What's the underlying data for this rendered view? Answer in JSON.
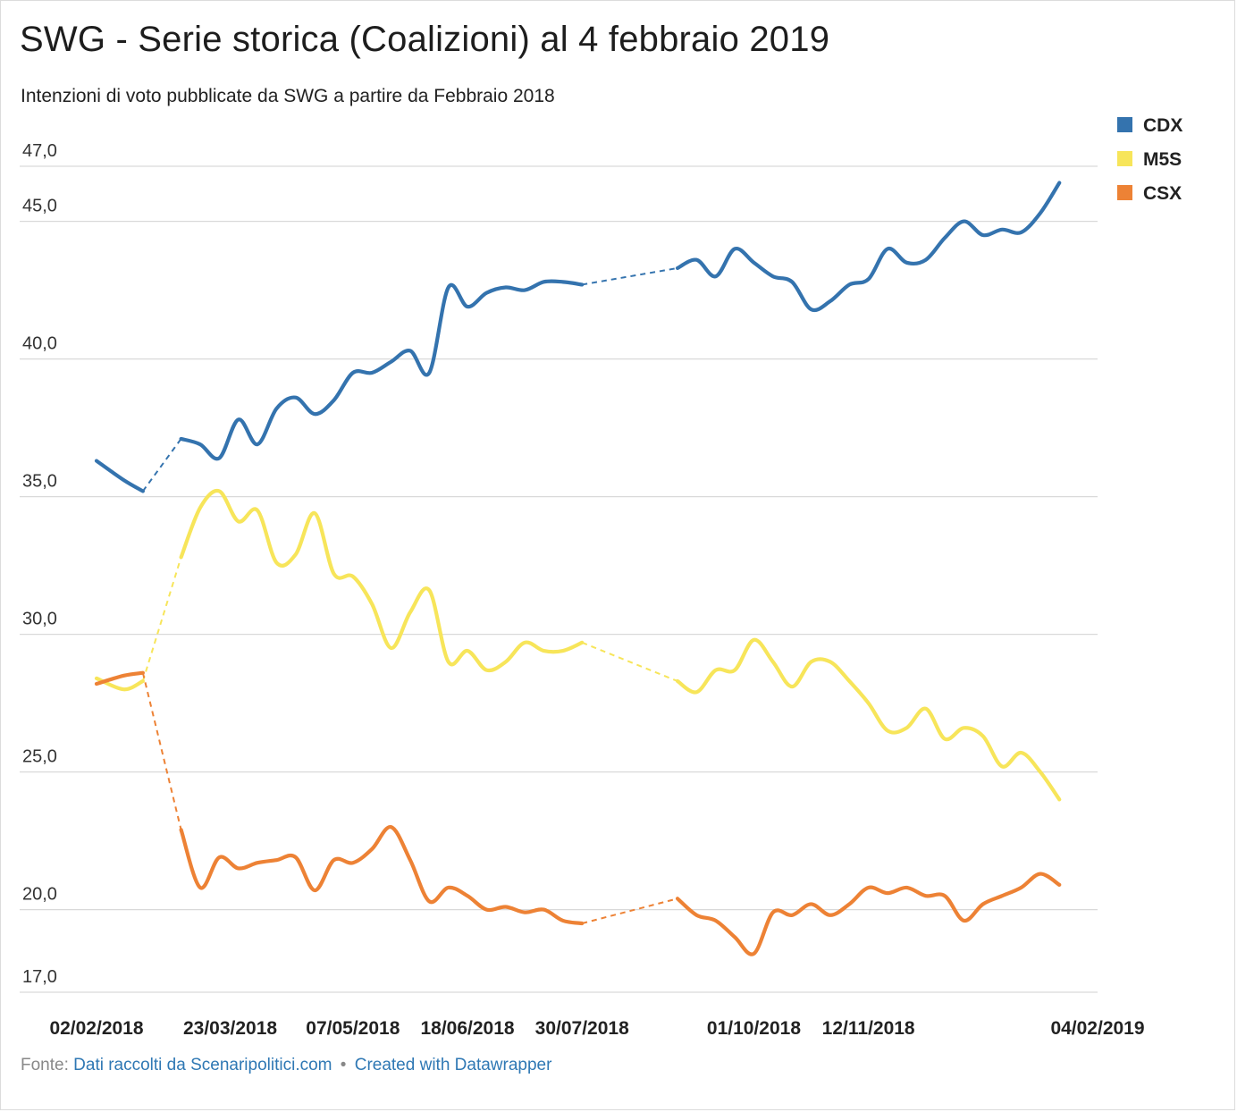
{
  "title": "SWG - Serie storica (Coalizioni) al 4 febbraio 2019",
  "subtitle": "Intenzioni di voto pubblicate da SWG a partire da Febbraio 2018",
  "footer": {
    "source_prefix": "Fonte:",
    "source_link": "Dati raccolti da Scenaripolitici.com",
    "separator": "•",
    "credit_link": "Created with Datawrapper"
  },
  "chart_data": {
    "type": "line",
    "x_start": "02/02/2018",
    "x_end": "04/02/2019",
    "ylim": [
      17.0,
      47.0
    ],
    "yticks": [
      "47,0",
      "45,0",
      "40,0",
      "35,0",
      "30,0",
      "25,0",
      "20,0",
      "17,0"
    ],
    "ytick_values": [
      47,
      45,
      40,
      35,
      30,
      25,
      20,
      17
    ],
    "xticks": [
      "02/02/2018",
      "23/03/2018",
      "07/05/2018",
      "18/06/2018",
      "30/07/2018",
      "01/10/2018",
      "12/11/2018",
      "04/02/2019"
    ],
    "xtick_dates": [
      "2018-02-02",
      "2018-03-23",
      "2018-05-07",
      "2018-06-18",
      "2018-07-30",
      "2018-10-01",
      "2018-11-12",
      "2019-02-04"
    ],
    "legend": "top-right",
    "grid": true,
    "gaps": [
      [
        "2018-02-19",
        "2018-03-05"
      ],
      [
        "2018-07-30",
        "2018-09-03"
      ]
    ],
    "series": [
      {
        "name": "CDX",
        "color": "#3473ae",
        "points": [
          [
            "2018-02-02",
            36.3
          ],
          [
            "2018-02-12",
            35.6
          ],
          [
            "2018-02-19",
            35.2
          ],
          [
            "2018-03-05",
            37.1
          ],
          [
            "2018-03-12",
            36.9
          ],
          [
            "2018-03-19",
            36.4
          ],
          [
            "2018-03-26",
            37.8
          ],
          [
            "2018-04-02",
            36.9
          ],
          [
            "2018-04-09",
            38.2
          ],
          [
            "2018-04-16",
            38.6
          ],
          [
            "2018-04-23",
            38.0
          ],
          [
            "2018-04-30",
            38.5
          ],
          [
            "2018-05-07",
            39.5
          ],
          [
            "2018-05-14",
            39.5
          ],
          [
            "2018-05-21",
            39.9
          ],
          [
            "2018-05-28",
            40.3
          ],
          [
            "2018-06-04",
            39.5
          ],
          [
            "2018-06-11",
            42.6
          ],
          [
            "2018-06-18",
            41.9
          ],
          [
            "2018-06-25",
            42.4
          ],
          [
            "2018-07-02",
            42.6
          ],
          [
            "2018-07-09",
            42.5
          ],
          [
            "2018-07-16",
            42.8
          ],
          [
            "2018-07-23",
            42.8
          ],
          [
            "2018-07-30",
            42.7
          ],
          [
            "2018-09-03",
            43.3
          ],
          [
            "2018-09-10",
            43.6
          ],
          [
            "2018-09-17",
            43.0
          ],
          [
            "2018-09-24",
            44.0
          ],
          [
            "2018-10-01",
            43.5
          ],
          [
            "2018-10-08",
            43.0
          ],
          [
            "2018-10-15",
            42.8
          ],
          [
            "2018-10-22",
            41.8
          ],
          [
            "2018-10-29",
            42.1
          ],
          [
            "2018-11-05",
            42.7
          ],
          [
            "2018-11-12",
            42.9
          ],
          [
            "2018-11-19",
            44.0
          ],
          [
            "2018-11-26",
            43.5
          ],
          [
            "2018-12-03",
            43.6
          ],
          [
            "2018-12-10",
            44.4
          ],
          [
            "2018-12-17",
            45.0
          ],
          [
            "2018-12-24",
            44.5
          ],
          [
            "2018-12-31",
            44.7
          ],
          [
            "2019-01-07",
            44.6
          ],
          [
            "2019-01-14",
            45.3
          ],
          [
            "2019-01-21",
            46.4
          ]
        ]
      },
      {
        "name": "M5S",
        "color": "#f7e55a",
        "points": [
          [
            "2018-02-02",
            28.4
          ],
          [
            "2018-02-12",
            28.0
          ],
          [
            "2018-02-19",
            28.3
          ],
          [
            "2018-03-05",
            32.8
          ],
          [
            "2018-03-12",
            34.6
          ],
          [
            "2018-03-19",
            35.2
          ],
          [
            "2018-03-26",
            34.1
          ],
          [
            "2018-04-02",
            34.5
          ],
          [
            "2018-04-09",
            32.6
          ],
          [
            "2018-04-16",
            32.9
          ],
          [
            "2018-04-23",
            34.4
          ],
          [
            "2018-04-30",
            32.2
          ],
          [
            "2018-05-07",
            32.1
          ],
          [
            "2018-05-14",
            31.1
          ],
          [
            "2018-05-21",
            29.5
          ],
          [
            "2018-05-28",
            30.8
          ],
          [
            "2018-06-04",
            31.6
          ],
          [
            "2018-06-11",
            29.0
          ],
          [
            "2018-06-18",
            29.4
          ],
          [
            "2018-06-25",
            28.7
          ],
          [
            "2018-07-02",
            29.0
          ],
          [
            "2018-07-09",
            29.7
          ],
          [
            "2018-07-16",
            29.4
          ],
          [
            "2018-07-23",
            29.4
          ],
          [
            "2018-07-30",
            29.7
          ],
          [
            "2018-09-03",
            28.3
          ],
          [
            "2018-09-10",
            27.9
          ],
          [
            "2018-09-17",
            28.7
          ],
          [
            "2018-09-24",
            28.7
          ],
          [
            "2018-10-01",
            29.8
          ],
          [
            "2018-10-08",
            29.0
          ],
          [
            "2018-10-15",
            28.1
          ],
          [
            "2018-10-22",
            29.0
          ],
          [
            "2018-10-29",
            29.0
          ],
          [
            "2018-11-05",
            28.3
          ],
          [
            "2018-11-12",
            27.5
          ],
          [
            "2018-11-19",
            26.5
          ],
          [
            "2018-11-26",
            26.6
          ],
          [
            "2018-12-03",
            27.3
          ],
          [
            "2018-12-10",
            26.2
          ],
          [
            "2018-12-17",
            26.6
          ],
          [
            "2018-12-24",
            26.3
          ],
          [
            "2018-12-31",
            25.2
          ],
          [
            "2019-01-07",
            25.7
          ],
          [
            "2019-01-14",
            25.0
          ],
          [
            "2019-01-21",
            24.0
          ]
        ]
      },
      {
        "name": "CSX",
        "color": "#ed8235",
        "points": [
          [
            "2018-02-02",
            28.2
          ],
          [
            "2018-02-12",
            28.5
          ],
          [
            "2018-02-19",
            28.6
          ],
          [
            "2018-03-05",
            22.9
          ],
          [
            "2018-03-12",
            20.8
          ],
          [
            "2018-03-19",
            21.9
          ],
          [
            "2018-03-26",
            21.5
          ],
          [
            "2018-04-02",
            21.7
          ],
          [
            "2018-04-09",
            21.8
          ],
          [
            "2018-04-16",
            21.9
          ],
          [
            "2018-04-23",
            20.7
          ],
          [
            "2018-04-30",
            21.8
          ],
          [
            "2018-05-07",
            21.7
          ],
          [
            "2018-05-14",
            22.2
          ],
          [
            "2018-05-21",
            23.0
          ],
          [
            "2018-05-28",
            21.8
          ],
          [
            "2018-06-04",
            20.3
          ],
          [
            "2018-06-11",
            20.8
          ],
          [
            "2018-06-18",
            20.5
          ],
          [
            "2018-06-25",
            20.0
          ],
          [
            "2018-07-02",
            20.1
          ],
          [
            "2018-07-09",
            19.9
          ],
          [
            "2018-07-16",
            20.0
          ],
          [
            "2018-07-23",
            19.6
          ],
          [
            "2018-07-30",
            19.5
          ],
          [
            "2018-09-03",
            20.4
          ],
          [
            "2018-09-10",
            19.8
          ],
          [
            "2018-09-17",
            19.6
          ],
          [
            "2018-09-24",
            19.0
          ],
          [
            "2018-10-01",
            18.4
          ],
          [
            "2018-10-08",
            19.9
          ],
          [
            "2018-10-15",
            19.8
          ],
          [
            "2018-10-22",
            20.2
          ],
          [
            "2018-10-29",
            19.8
          ],
          [
            "2018-11-05",
            20.2
          ],
          [
            "2018-11-12",
            20.8
          ],
          [
            "2018-11-19",
            20.6
          ],
          [
            "2018-11-26",
            20.8
          ],
          [
            "2018-12-03",
            20.5
          ],
          [
            "2018-12-10",
            20.5
          ],
          [
            "2018-12-17",
            19.6
          ],
          [
            "2018-12-24",
            20.2
          ],
          [
            "2018-12-31",
            20.5
          ],
          [
            "2019-01-07",
            20.8
          ],
          [
            "2019-01-14",
            21.3
          ],
          [
            "2019-01-21",
            20.9
          ]
        ]
      }
    ]
  }
}
